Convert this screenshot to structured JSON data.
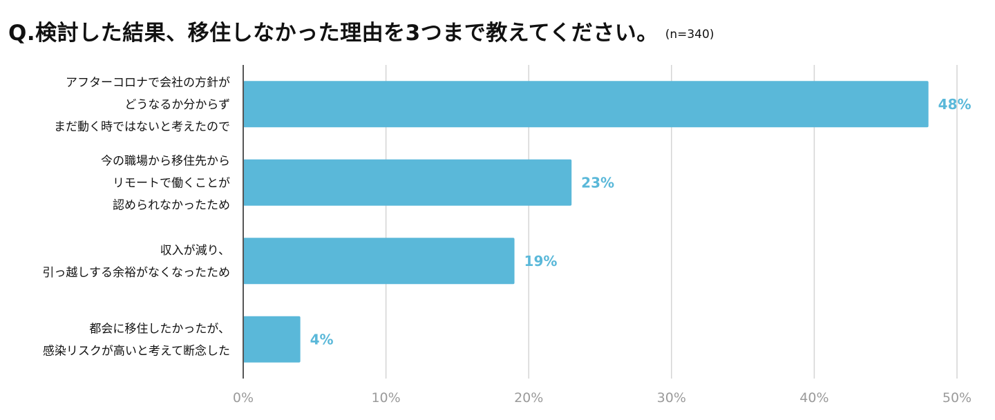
{
  "chart_data": {
    "type": "bar",
    "orientation": "horizontal",
    "title": "Q.検討した結果、移住しなかった理由を3つまで教えてください。",
    "subtitle": "(n=340)",
    "categories": [
      [
        "アフターコロナで会社の方針が",
        "どうなるか分からず",
        "まだ動く時ではないと考えたので"
      ],
      [
        "今の職場から移住先から",
        "リモートで働くことが",
        "認められなかったため"
      ],
      [
        "収入が減り、",
        "引っ越しする余裕がなくなったため"
      ],
      [
        "都会に移住したかったが、",
        "感染リスクが高いと考えて断念した"
      ]
    ],
    "values": [
      48,
      23,
      19,
      4
    ],
    "value_labels": [
      "48%",
      "23%",
      "19%",
      "4%"
    ],
    "xlim": [
      0,
      50
    ],
    "ticks": [
      0,
      10,
      20,
      30,
      40,
      50
    ],
    "tick_labels": [
      "0%",
      "10%",
      "20%",
      "30%",
      "40%",
      "50%"
    ],
    "grid": true,
    "bar_color": "#5ab8d9",
    "grid_color": "#d4d4d4",
    "axis_color": "#555555"
  }
}
